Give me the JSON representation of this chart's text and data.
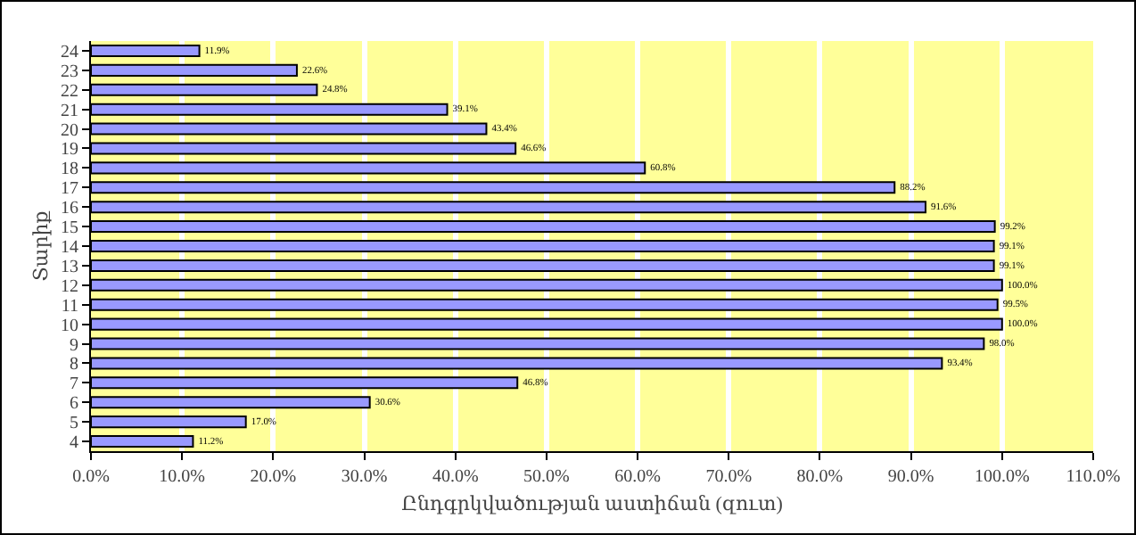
{
  "chart_data": {
    "type": "bar",
    "orientation": "horizontal",
    "xlabel": "Ընդգրկվածության աստիճան (զուտ)",
    "ylabel": "Տարիք",
    "categories": [
      "24",
      "23",
      "22",
      "21",
      "20",
      "19",
      "18",
      "17",
      "16",
      "15",
      "14",
      "13",
      "12",
      "11",
      "10",
      "9",
      "8",
      "7",
      "6",
      "5",
      "4"
    ],
    "values": [
      11.9,
      22.6,
      24.8,
      39.1,
      43.4,
      46.6,
      60.8,
      88.2,
      91.6,
      99.2,
      99.1,
      99.1,
      100.0,
      99.5,
      100.0,
      98.0,
      93.4,
      46.8,
      30.6,
      17.0,
      11.2
    ],
    "value_labels": [
      "11.9%",
      "22.6%",
      "24.8%",
      "39.1%",
      "43.4%",
      "46.6%",
      "60.8%",
      "88.2%",
      "91.6%",
      "99.2%",
      "99.1%",
      "99.1%",
      "100.0%",
      "99.5%",
      "100.0%",
      "98.0%",
      "93.4%",
      "46.8%",
      "30.6%",
      "17.0%",
      "11.2%"
    ],
    "color": "#9999ff",
    "xlim": [
      0,
      110
    ],
    "xticks": [
      {
        "value": 0,
        "label": "0.0%"
      },
      {
        "value": 10,
        "label": "10.0%"
      },
      {
        "value": 20,
        "label": "20.0%"
      },
      {
        "value": 30,
        "label": "30.0%"
      },
      {
        "value": 40,
        "label": "40.0%"
      },
      {
        "value": 50,
        "label": "50.0%"
      },
      {
        "value": 60,
        "label": "60.0%"
      },
      {
        "value": 70,
        "label": "70.0%"
      },
      {
        "value": 80,
        "label": "80.0%"
      },
      {
        "value": 90,
        "label": "90.0%"
      },
      {
        "value": 100,
        "label": "100.0%"
      },
      {
        "value": 110,
        "label": "110.0%"
      }
    ],
    "grid": "x"
  }
}
